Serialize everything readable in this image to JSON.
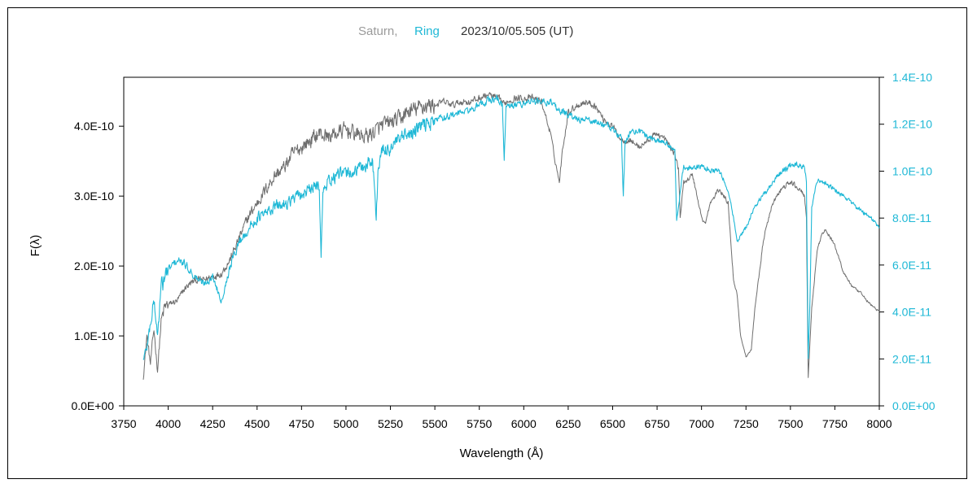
{
  "chart_data": {
    "type": "line",
    "title": {
      "series1_name": "Saturn,",
      "series2_name": "Ring",
      "date": "2023/10/05.505 (UT)"
    },
    "xlabel": "Wavelength (Å)",
    "ylabel_left": "F(λ)",
    "xlim": [
      3750,
      8000
    ],
    "ylim_left": [
      0,
      4.7e-10
    ],
    "ylim_right": [
      0,
      1.4e-10
    ],
    "x_ticks": [
      "3750",
      "4000",
      "4250",
      "4500",
      "4750",
      "5000",
      "5250",
      "5500",
      "5750",
      "6000",
      "6250",
      "6500",
      "6750",
      "7000",
      "7250",
      "7500",
      "7750",
      "8000"
    ],
    "y_ticks_left": [
      "0.0E+00",
      "1.0E-10",
      "2.0E-10",
      "3.0E-10",
      "4.0E-10"
    ],
    "y_ticks_right": [
      "0.0E+00",
      "2.0E-11",
      "4.0E-11",
      "6.0E-11",
      "8.0E-11",
      "1.0E-10",
      "1.2E-10",
      "1.4E-10"
    ],
    "grid": false,
    "colors": {
      "saturn": "#6e6e6e",
      "ring": "#1fb8d6",
      "right_axis": "#1fb8d6"
    },
    "series": [
      {
        "name": "Saturn",
        "axis": "left",
        "x": [
          3860,
          3880,
          3900,
          3920,
          3940,
          3960,
          3980,
          4000,
          4050,
          4100,
          4150,
          4200,
          4250,
          4300,
          4350,
          4400,
          4450,
          4500,
          4550,
          4600,
          4650,
          4700,
          4750,
          4800,
          4850,
          4900,
          4950,
          5000,
          5050,
          5100,
          5150,
          5200,
          5250,
          5300,
          5350,
          5400,
          5450,
          5500,
          5550,
          5600,
          5650,
          5700,
          5750,
          5800,
          5850,
          5880,
          5890,
          5900,
          5950,
          6000,
          6050,
          6100,
          6150,
          6170,
          6200,
          6220,
          6250,
          6300,
          6350,
          6400,
          6450,
          6500,
          6550,
          6600,
          6650,
          6700,
          6750,
          6800,
          6850,
          6870,
          6880,
          6900,
          6950,
          7000,
          7020,
          7050,
          7100,
          7150,
          7180,
          7200,
          7220,
          7250,
          7280,
          7300,
          7350,
          7400,
          7450,
          7500,
          7550,
          7580,
          7590,
          7600,
          7620,
          7650,
          7680,
          7700,
          7750,
          7800,
          7850,
          7900,
          7950,
          8000
        ],
        "y": [
          4e-11,
          1e-10,
          6e-11,
          1.1e-10,
          5e-11,
          1.2e-10,
          1.4e-10,
          1.45e-10,
          1.5e-10,
          1.7e-10,
          1.8e-10,
          1.8e-10,
          1.85e-10,
          1.9e-10,
          2.1e-10,
          2.4e-10,
          2.7e-10,
          2.9e-10,
          3.1e-10,
          3.3e-10,
          3.4e-10,
          3.6e-10,
          3.7e-10,
          3.8e-10,
          3.9e-10,
          3.85e-10,
          3.9e-10,
          3.95e-10,
          3.9e-10,
          3.85e-10,
          3.9e-10,
          4e-10,
          4.05e-10,
          4.1e-10,
          4.2e-10,
          4.25e-10,
          4.3e-10,
          4.3e-10,
          4.35e-10,
          4.3e-10,
          4.35e-10,
          4.35e-10,
          4.4e-10,
          4.45e-10,
          4.4e-10,
          4.35e-10,
          4.3e-10,
          4.35e-10,
          4.4e-10,
          4.4e-10,
          4.4e-10,
          4.35e-10,
          3.9e-10,
          3.6e-10,
          3.2e-10,
          3.7e-10,
          4.2e-10,
          4.3e-10,
          4.35e-10,
          4.3e-10,
          4.1e-10,
          4e-10,
          3.8e-10,
          3.8e-10,
          3.7e-10,
          3.8e-10,
          3.9e-10,
          3.8e-10,
          3.6e-10,
          3.4e-10,
          2.7e-10,
          3.2e-10,
          3.3e-10,
          2.7e-10,
          2.6e-10,
          2.9e-10,
          3.1e-10,
          2.9e-10,
          1.8e-10,
          1.6e-10,
          1e-10,
          7e-11,
          8e-11,
          1.4e-10,
          2.4e-10,
          2.9e-10,
          3.1e-10,
          3.2e-10,
          3.1e-10,
          3e-10,
          2.7e-10,
          4e-11,
          1.4e-10,
          2.2e-10,
          2.5e-10,
          2.5e-10,
          2.3e-10,
          1.9e-10,
          1.7e-10,
          1.6e-10,
          1.45e-10,
          1.35e-10
        ]
      },
      {
        "name": "Ring",
        "axis": "right",
        "x": [
          3860,
          3880,
          3900,
          3920,
          3940,
          3960,
          3980,
          4000,
          4050,
          4100,
          4150,
          4200,
          4250,
          4300,
          4350,
          4400,
          4450,
          4500,
          4550,
          4600,
          4650,
          4700,
          4750,
          4800,
          4850,
          4860,
          4870,
          4900,
          4950,
          5000,
          5050,
          5100,
          5150,
          5170,
          5180,
          5200,
          5250,
          5300,
          5350,
          5400,
          5450,
          5500,
          5550,
          5600,
          5650,
          5700,
          5750,
          5800,
          5850,
          5880,
          5890,
          5900,
          5950,
          6000,
          6050,
          6100,
          6150,
          6200,
          6250,
          6300,
          6350,
          6400,
          6450,
          6500,
          6550,
          6560,
          6570,
          6600,
          6650,
          6700,
          6750,
          6800,
          6850,
          6860,
          6870,
          6900,
          6950,
          7000,
          7050,
          7100,
          7150,
          7180,
          7200,
          7250,
          7300,
          7350,
          7400,
          7450,
          7500,
          7550,
          7580,
          7590,
          7600,
          7610,
          7620,
          7650,
          7700,
          7750,
          7800,
          7850,
          7900,
          7950,
          8000
        ],
        "y": [
          2e-11,
          2.5e-11,
          3.5e-11,
          4.5e-11,
          3e-11,
          5e-11,
          5.5e-11,
          5.8e-11,
          6.2e-11,
          6e-11,
          5.5e-11,
          5.2e-11,
          5.5e-11,
          4.5e-11,
          6e-11,
          7e-11,
          7.5e-11,
          8e-11,
          8.2e-11,
          8.5e-11,
          8.6e-11,
          8.8e-11,
          9e-11,
          9.2e-11,
          9.4e-11,
          6.5e-11,
          9e-11,
          9.6e-11,
          9.8e-11,
          9.9e-11,
          1e-10,
          1.02e-10,
          1.05e-10,
          8e-11,
          1e-10,
          1.08e-10,
          1.1e-10,
          1.13e-10,
          1.15e-10,
          1.18e-10,
          1.2e-10,
          1.22e-10,
          1.23e-10,
          1.24e-10,
          1.25e-10,
          1.26e-10,
          1.28e-10,
          1.3e-10,
          1.31e-10,
          1.28e-10,
          1.05e-10,
          1.27e-10,
          1.28e-10,
          1.29e-10,
          1.3e-10,
          1.29e-10,
          1.3e-10,
          1.26e-10,
          1.24e-10,
          1.22e-10,
          1.22e-10,
          1.21e-10,
          1.2e-10,
          1.18e-10,
          1.14e-10,
          8.9e-11,
          1.12e-10,
          1.17e-10,
          1.17e-10,
          1.15e-10,
          1.13e-10,
          1.12e-10,
          1.1e-10,
          7.8e-11,
          8.5e-11,
          1.02e-10,
          1.01e-10,
          1.02e-10,
          1e-10,
          1e-10,
          9.2e-11,
          8e-11,
          7e-11,
          7.6e-11,
          8.5e-11,
          9e-11,
          9.5e-11,
          1e-10,
          1.02e-10,
          1.03e-10,
          1.02e-10,
          9.5e-11,
          2e-11,
          4.5e-11,
          8.5e-11,
          9.6e-11,
          9.5e-11,
          9.2e-11,
          8.9e-11,
          8.6e-11,
          8.3e-11,
          8e-11,
          7.6e-11
        ]
      }
    ]
  }
}
